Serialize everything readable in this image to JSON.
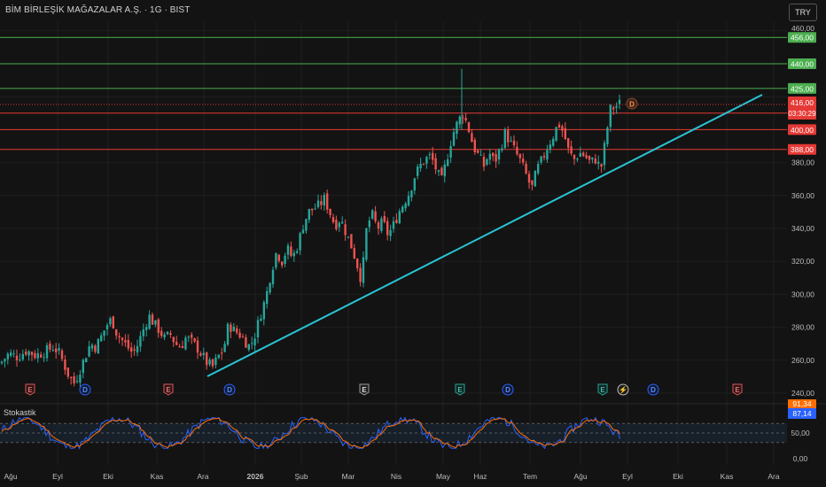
{
  "header": {
    "symbol_title": "BİM BİRLEŞİK MAĞAZALAR A.Ş. · 1G · BIST",
    "currency_button": "TRY"
  },
  "colors": {
    "background": "#131313",
    "up": "#26a69a",
    "down": "#ef5350",
    "trendline": "#29c4d4",
    "resistance_green": "#4caf50",
    "support_red": "#e53935",
    "stoch_k": "#2962ff",
    "stoch_d": "#ff6d00"
  },
  "price_axis": {
    "ticks": [
      "240,00",
      "260,00",
      "280,00",
      "300,00",
      "320,00",
      "340,00",
      "360,00",
      "380,00"
    ],
    "top_partial_tick": "460,00"
  },
  "horizontal_levels": [
    {
      "price": 456,
      "label": "456,00",
      "color": "green"
    },
    {
      "price": 440,
      "label": "440,00",
      "color": "green"
    },
    {
      "price": 425,
      "label": "425,00",
      "color": "green"
    },
    {
      "price": 410,
      "label": "410,00",
      "color": "red"
    },
    {
      "price": 400,
      "label": "400,00",
      "color": "red"
    },
    {
      "price": 388,
      "label": "388,00",
      "color": "red"
    }
  ],
  "last_price": {
    "value": "416,00",
    "countdown": "03:30:29"
  },
  "time_axis": [
    "Ağu",
    "Eyl",
    "Eki",
    "Kas",
    "Ara",
    "2026",
    "Şub",
    "Mar",
    "Nis",
    "May",
    "Haz",
    "Tem",
    "Ağu",
    "Eyl",
    "Eki",
    "Kas",
    "Ara"
  ],
  "event_markers": [
    {
      "label": "E",
      "type": "earnings-past"
    },
    {
      "label": "D",
      "type": "dividend"
    },
    {
      "label": "E",
      "type": "earnings-past"
    },
    {
      "label": "D",
      "type": "dividend"
    },
    {
      "label": "E",
      "type": "earnings-neutral"
    },
    {
      "label": "E",
      "type": "earnings-beat"
    },
    {
      "label": "D",
      "type": "dividend"
    },
    {
      "label": "E",
      "type": "earnings-beat"
    },
    {
      "label": "⚡",
      "type": "split"
    },
    {
      "label": "D",
      "type": "dividend"
    },
    {
      "label": "E",
      "type": "earnings-future"
    }
  ],
  "chart_marker": {
    "label": "D"
  },
  "indicator": {
    "name": "Stokastik",
    "k_value": "87,14",
    "d_value": "91,34",
    "ticks": [
      "50,00",
      "0,00"
    ]
  },
  "chart_data": {
    "type": "candlestick",
    "symbol": "BİM BİRLEŞİK MAĞAZALAR A.Ş.",
    "interval": "1G",
    "exchange": "BIST",
    "ylim": [
      240,
      460
    ],
    "close_path": [
      [
        0,
        258
      ],
      [
        10,
        264
      ],
      [
        20,
        262
      ],
      [
        30,
        266
      ],
      [
        40,
        263
      ],
      [
        50,
        265
      ],
      [
        60,
        268
      ],
      [
        66,
        265
      ],
      [
        72,
        258
      ],
      [
        78,
        250
      ],
      [
        84,
        246
      ],
      [
        90,
        254
      ],
      [
        96,
        262
      ],
      [
        102,
        270
      ],
      [
        108,
        268
      ],
      [
        114,
        274
      ],
      [
        120,
        281
      ],
      [
        126,
        285
      ],
      [
        132,
        276
      ],
      [
        138,
        272
      ],
      [
        144,
        268
      ],
      [
        150,
        264
      ],
      [
        156,
        270
      ],
      [
        162,
        279
      ],
      [
        168,
        287
      ],
      [
        174,
        282
      ],
      [
        180,
        278
      ],
      [
        186,
        273
      ],
      [
        192,
        276
      ],
      [
        198,
        270
      ],
      [
        204,
        268
      ],
      [
        210,
        274
      ],
      [
        216,
        271
      ],
      [
        222,
        268
      ],
      [
        228,
        263
      ],
      [
        234,
        258
      ],
      [
        240,
        256
      ],
      [
        246,
        262
      ],
      [
        252,
        266
      ],
      [
        258,
        282
      ],
      [
        264,
        278
      ],
      [
        270,
        276
      ],
      [
        276,
        272
      ],
      [
        282,
        268
      ],
      [
        288,
        276
      ],
      [
        294,
        288
      ],
      [
        300,
        298
      ],
      [
        306,
        314
      ],
      [
        312,
        326
      ],
      [
        318,
        320
      ],
      [
        324,
        328
      ],
      [
        330,
        322
      ],
      [
        336,
        330
      ],
      [
        342,
        342
      ],
      [
        348,
        350
      ],
      [
        354,
        352
      ],
      [
        360,
        354
      ],
      [
        366,
        358
      ],
      [
        372,
        350
      ],
      [
        378,
        342
      ],
      [
        384,
        346
      ],
      [
        390,
        338
      ],
      [
        396,
        330
      ],
      [
        402,
        320
      ],
      [
        408,
        308
      ],
      [
        414,
        342
      ],
      [
        420,
        348
      ],
      [
        426,
        340
      ],
      [
        432,
        344
      ],
      [
        438,
        336
      ],
      [
        444,
        342
      ],
      [
        450,
        350
      ],
      [
        456,
        356
      ],
      [
        462,
        362
      ],
      [
        468,
        372
      ],
      [
        474,
        378
      ],
      [
        480,
        382
      ],
      [
        486,
        384
      ],
      [
        492,
        376
      ],
      [
        498,
        368
      ],
      [
        504,
        382
      ],
      [
        510,
        396
      ],
      [
        516,
        404
      ],
      [
        522,
        410
      ],
      [
        528,
        402
      ],
      [
        534,
        390
      ],
      [
        540,
        384
      ],
      [
        546,
        378
      ],
      [
        552,
        386
      ],
      [
        558,
        380
      ],
      [
        564,
        388
      ],
      [
        570,
        398
      ],
      [
        576,
        392
      ],
      [
        582,
        386
      ],
      [
        588,
        380
      ],
      [
        594,
        372
      ],
      [
        600,
        364
      ],
      [
        606,
        376
      ],
      [
        612,
        382
      ],
      [
        618,
        390
      ],
      [
        624,
        396
      ],
      [
        630,
        404
      ],
      [
        636,
        398
      ],
      [
        642,
        386
      ],
      [
        648,
        382
      ],
      [
        654,
        386
      ],
      [
        660,
        384
      ],
      [
        666,
        380
      ],
      [
        672,
        382
      ],
      [
        678,
        376
      ],
      [
        684,
        396
      ],
      [
        688,
        412
      ],
      [
        694,
        414
      ],
      [
        700,
        416
      ]
    ],
    "trendline": {
      "from": {
        "bar": "Ara",
        "price": 251
      },
      "to": {
        "bar": "Eki-Kas",
        "price": 423
      }
    }
  }
}
